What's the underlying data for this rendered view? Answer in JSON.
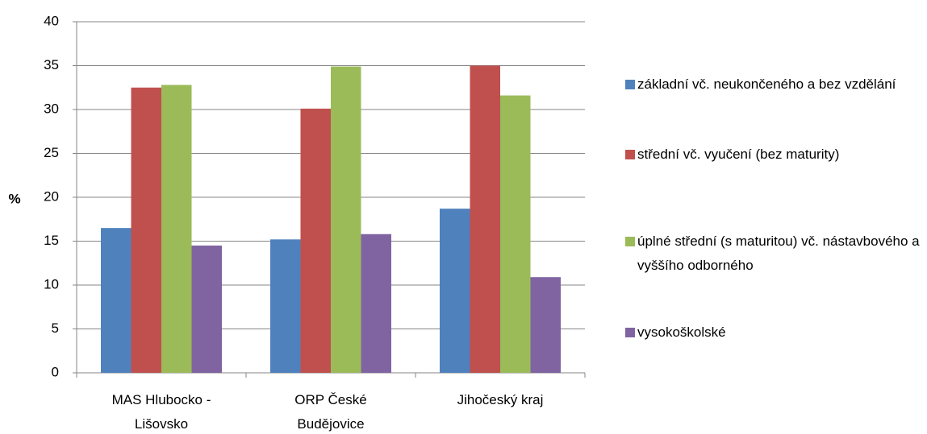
{
  "chart_data": {
    "type": "bar",
    "y_label": "%",
    "categories": [
      "MAS Hlubocko - Lišovsko",
      "ORP České Budějovice",
      "Jihočeský kraj"
    ],
    "series": [
      {
        "name": "základní vč. neukončeného a bez vzdělání",
        "color": "#4f81bd",
        "values": [
          16.5,
          15.2,
          18.7
        ]
      },
      {
        "name": "střední vč. vyučení (bez maturity)",
        "color": "#c0504d",
        "values": [
          32.5,
          30.1,
          35.0
        ]
      },
      {
        "name": "úplné střední (s maturitou) vč. nástavbového a vyššího odborného",
        "color": "#9bbb59",
        "values": [
          32.8,
          34.9,
          31.6
        ]
      },
      {
        "name": "vysokoškolské",
        "color": "#8064a2",
        "values": [
          14.5,
          15.8,
          10.9
        ]
      }
    ],
    "ylim": [
      0,
      40
    ],
    "yticks": [
      0,
      5,
      10,
      15,
      20,
      25,
      30,
      35,
      40
    ],
    "grid": true,
    "legend": "right"
  }
}
